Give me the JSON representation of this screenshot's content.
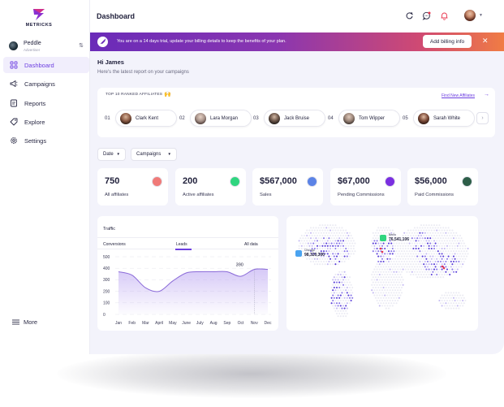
{
  "brand": {
    "name": "METRICKS",
    "accent": "#6d3fe0"
  },
  "account": {
    "name": "Peddle",
    "role": "Advertiser"
  },
  "sidebar": {
    "items": [
      {
        "label": "Dashboard",
        "icon": "grid-icon",
        "active": true
      },
      {
        "label": "Campaigns",
        "icon": "megaphone-icon",
        "active": false
      },
      {
        "label": "Reports",
        "icon": "report-icon",
        "active": false
      },
      {
        "label": "Explore",
        "icon": "tag-icon",
        "active": false
      },
      {
        "label": "Settings",
        "icon": "gear-icon",
        "active": false
      }
    ],
    "more_label": "More"
  },
  "header": {
    "title": "Dashboard"
  },
  "banner": {
    "text": "You are on a 14 days trial, update your billing details to keep the benefits of your plan.",
    "button_label": "Add billing info",
    "close": "✕"
  },
  "greeting": {
    "title": "Hi James",
    "subtitle": "Here's the latest report on your campaigns"
  },
  "affiliates": {
    "title": "TOP 10 RANKED AFFILIATES",
    "emoji": "🙌",
    "link_label": "Find New Affiliates",
    "items": [
      {
        "rank": "01",
        "name": "Clark Kent"
      },
      {
        "rank": "02",
        "name": "Lara Morgan"
      },
      {
        "rank": "03",
        "name": "Jack Bruise"
      },
      {
        "rank": "04",
        "name": "Tom Wipper"
      },
      {
        "rank": "05",
        "name": "Sarah White"
      }
    ]
  },
  "filters": {
    "date_label": "Date",
    "campaigns_label": "Campaigns"
  },
  "stats": [
    {
      "value": "750",
      "label": "All affiliates",
      "color": "#f07a78"
    },
    {
      "value": "200",
      "label": "Active affiliates",
      "color": "#2fd57f"
    },
    {
      "value": "$567,000",
      "label": "Sales",
      "color": "#5b83e6"
    },
    {
      "value": "$67,000",
      "label": "Pending Commissions",
      "color": "#7a2fe0"
    },
    {
      "value": "$56,000",
      "label": "Paid Commissions",
      "color": "#2d5e48"
    }
  ],
  "traffic": {
    "title": "Traffic",
    "tabs": [
      "Conversions",
      "Leads",
      "All data"
    ],
    "active_tab": "Leads",
    "highlight_label": "390"
  },
  "chart_data": {
    "type": "area",
    "title": "Traffic",
    "categories": [
      "Jan",
      "Feb",
      "Mar",
      "April",
      "May",
      "June",
      "July",
      "Aug",
      "Sep",
      "Oct",
      "Nov",
      "Dec"
    ],
    "values": [
      370,
      340,
      230,
      200,
      290,
      360,
      370,
      370,
      370,
      330,
      390,
      390
    ],
    "y_ticks": [
      "0",
      "100",
      "200",
      "300",
      "400",
      "500"
    ],
    "ylim": [
      0,
      500
    ],
    "highlight": {
      "category": "Nov",
      "value": 390,
      "label": "390"
    }
  },
  "map": {
    "tooltips": [
      {
        "city": "Chicago",
        "value": "98,320,300",
        "icon_color": "#4aa3f0"
      },
      {
        "city": "Berlin",
        "value": "76,541,106",
        "icon_color": "#2fd57f"
      }
    ]
  }
}
